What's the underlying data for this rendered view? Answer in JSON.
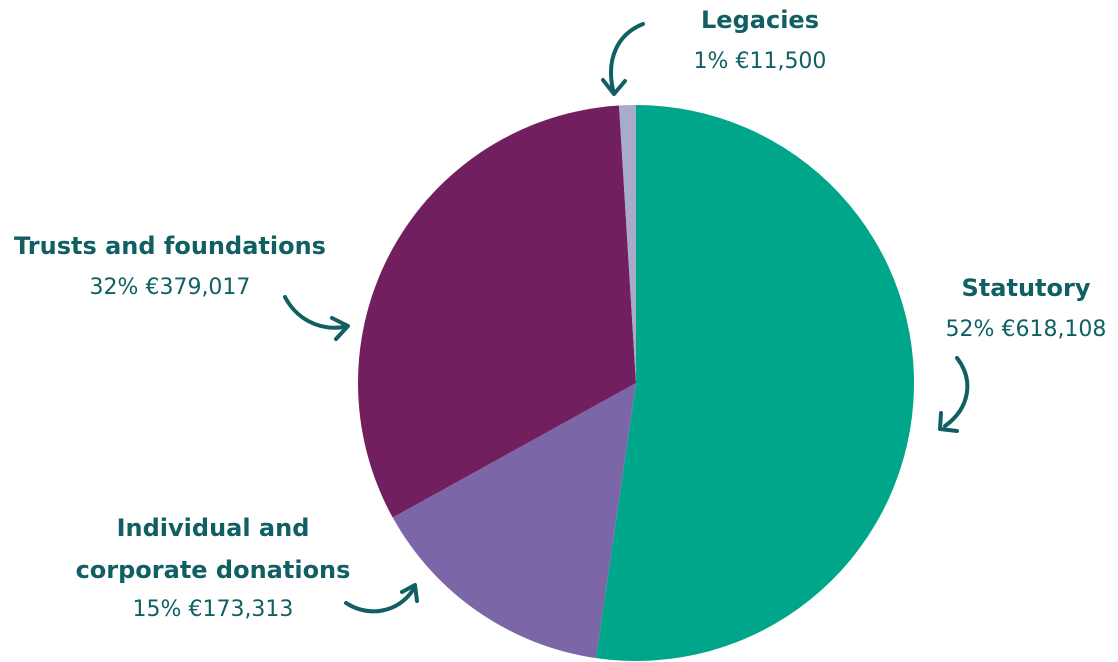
{
  "chart_data": {
    "type": "pie",
    "title": "",
    "slices": [
      {
        "name": "Statutory",
        "percent_label": "52%",
        "amount_label": "€618,108",
        "value": 618108,
        "color": "#00a68a"
      },
      {
        "name": "Individual and corporate donations",
        "name_lines": [
          "Individual and",
          "corporate donations"
        ],
        "percent_label": "15%",
        "amount_label": "€173,313",
        "value": 173313,
        "color": "#7b67a8"
      },
      {
        "name": "Trusts and foundations",
        "percent_label": "32%",
        "amount_label": "€379,017",
        "value": 379017,
        "color": "#721f5f"
      },
      {
        "name": "Legacies",
        "percent_label": "1%",
        "amount_label": "€11,500",
        "value": 11500,
        "color": "#a8abcc"
      }
    ],
    "label_color": "#0f5f63",
    "arrow_color": "#0f5f63"
  }
}
